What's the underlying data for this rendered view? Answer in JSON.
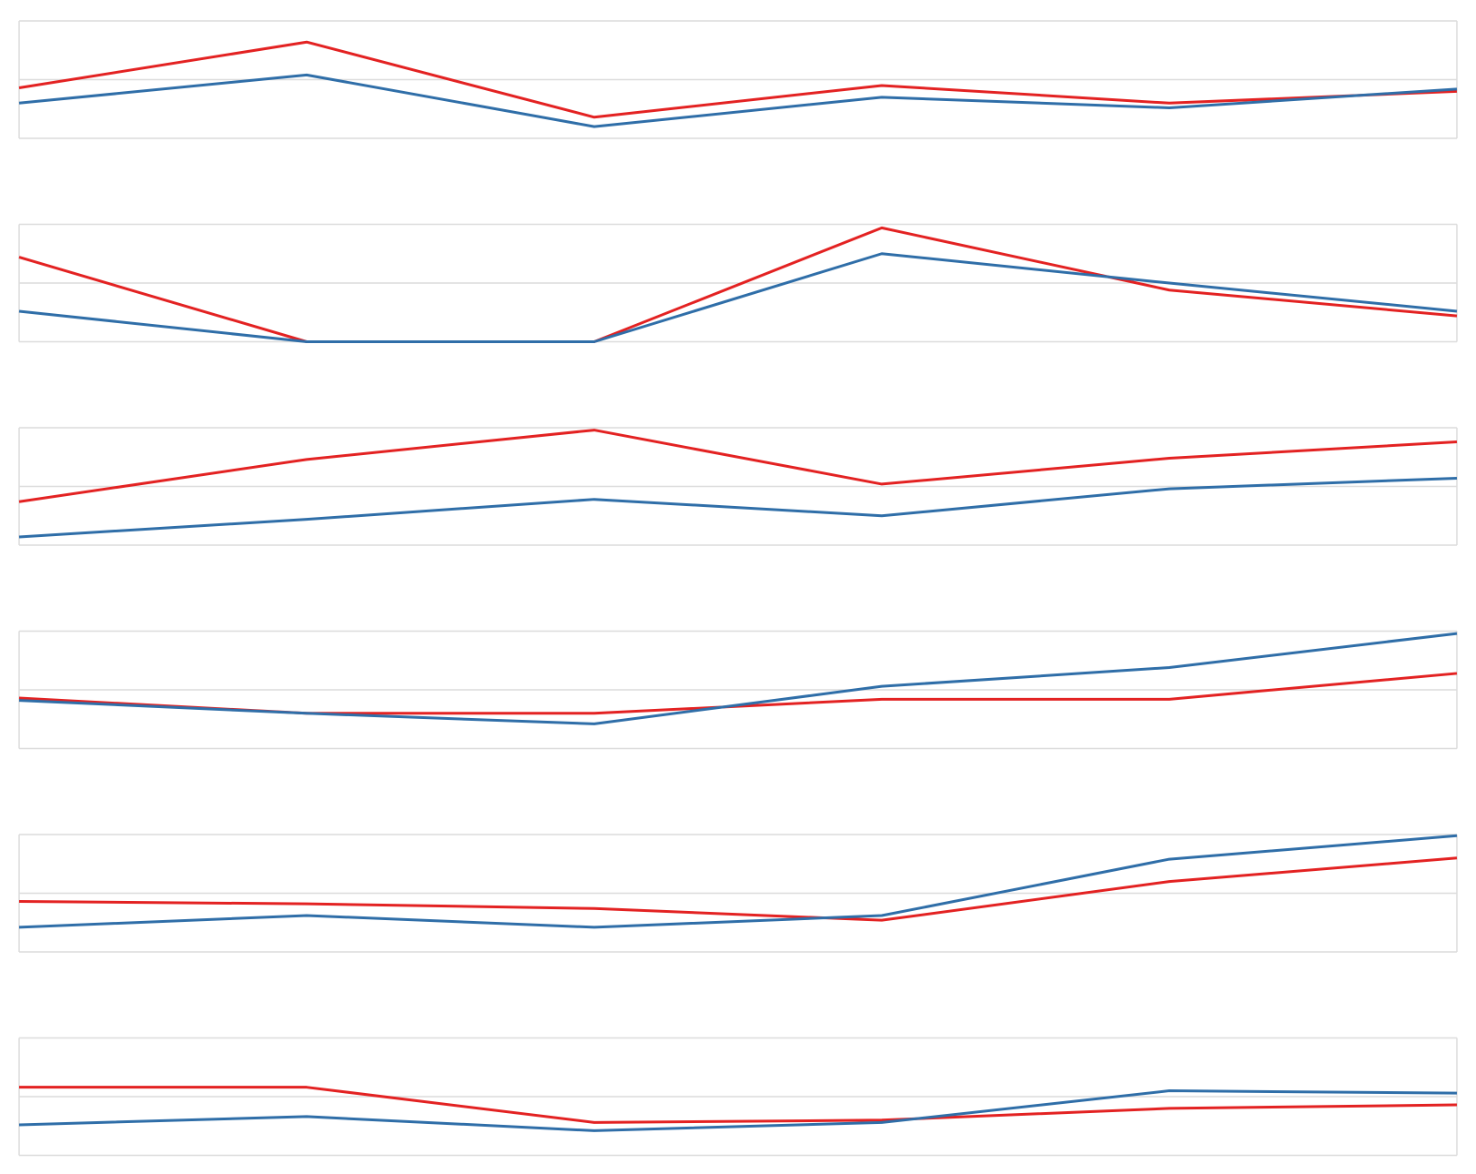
{
  "chart_data": [
    {
      "type": "line",
      "categories": [
        null,
        null,
        null,
        null,
        null,
        null
      ],
      "ylim": [
        0,
        100
      ],
      "yticks": [
        0,
        50,
        100
      ],
      "grid": true,
      "series": [
        {
          "color": "#e32222",
          "values": [
            43,
            82,
            18,
            45,
            30,
            40
          ]
        },
        {
          "color": "#2f6ea8",
          "values": [
            30,
            54,
            10,
            35,
            26,
            42
          ]
        }
      ]
    },
    {
      "type": "line",
      "categories": [
        null,
        null,
        null,
        null,
        null,
        null
      ],
      "ylim": [
        0,
        100
      ],
      "yticks": [
        0,
        50,
        100
      ],
      "grid": true,
      "series": [
        {
          "color": "#e32222",
          "values": [
            72,
            0,
            0,
            97,
            44,
            22
          ]
        },
        {
          "color": "#2f6ea8",
          "values": [
            26,
            0,
            0,
            75,
            50,
            26
          ]
        }
      ]
    },
    {
      "type": "line",
      "categories": [
        null,
        null,
        null,
        null,
        null,
        null
      ],
      "ylim": [
        0,
        100
      ],
      "yticks": [
        0,
        50,
        100
      ],
      "grid": true,
      "series": [
        {
          "color": "#e32222",
          "values": [
            37,
            73,
            98,
            52,
            74,
            88
          ]
        },
        {
          "color": "#2f6ea8",
          "values": [
            7,
            22,
            39,
            25,
            48,
            57
          ]
        }
      ]
    },
    {
      "type": "line",
      "categories": [
        null,
        null,
        null,
        null,
        null,
        null
      ],
      "ylim": [
        0,
        100
      ],
      "yticks": [
        0,
        50,
        100
      ],
      "grid": true,
      "series": [
        {
          "color": "#e32222",
          "values": [
            43,
            30,
            30,
            42,
            42,
            64
          ]
        },
        {
          "color": "#2f6ea8",
          "values": [
            41,
            30,
            21,
            53,
            69,
            98
          ]
        }
      ]
    },
    {
      "type": "line",
      "categories": [
        null,
        null,
        null,
        null,
        null,
        null
      ],
      "ylim": [
        0,
        100
      ],
      "yticks": [
        0,
        50,
        100
      ],
      "grid": true,
      "series": [
        {
          "color": "#e32222",
          "values": [
            43,
            41,
            37,
            27,
            60,
            80
          ]
        },
        {
          "color": "#2f6ea8",
          "values": [
            21,
            31,
            21,
            31,
            79,
            99
          ]
        }
      ]
    },
    {
      "type": "line",
      "categories": [
        null,
        null,
        null,
        null,
        null,
        null
      ],
      "ylim": [
        0,
        100
      ],
      "yticks": [
        0,
        50,
        100
      ],
      "grid": true,
      "series": [
        {
          "color": "#e32222",
          "values": [
            58,
            58,
            28,
            30,
            40,
            43
          ]
        },
        {
          "color": "#2f6ea8",
          "values": [
            26,
            33,
            21,
            28,
            55,
            53
          ]
        }
      ]
    }
  ]
}
